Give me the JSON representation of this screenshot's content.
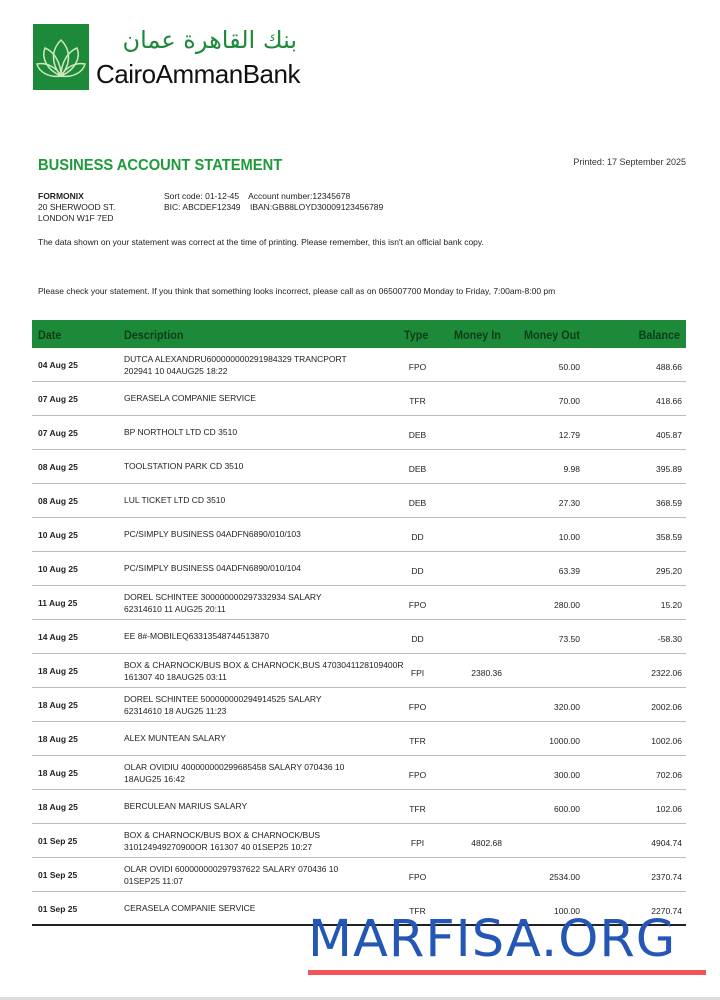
{
  "bank": {
    "name_ar": "بنك القاهرة عمان",
    "name_en": "CairoAmmanBank",
    "brand_color": "#1d8a3a"
  },
  "statement": {
    "title": "BUSINESS ACCOUNT STATEMENT",
    "printed": "Printed: 17 September 2025"
  },
  "customer": {
    "name": "FORMONIX",
    "address1": "20 SHERWOOD ST.",
    "address2": "LONDON W1F 7ED"
  },
  "account": {
    "line1": "Sort code: 01-12-45    Account number:12345678",
    "line2": "BIC: ABCDEF12349    IBAN:GB88LOYD30009123456789"
  },
  "notes": {
    "accuracy": "The data shown on your statement was correct at the time of printing. Please remember, this isn't an official bank copy.",
    "contact": "Please check your statement. If you think that something looks incorrect, please call as on 065007700 Monday to Friday, 7:00am-8:00 pm"
  },
  "table": {
    "headers": {
      "date": "Date",
      "description": "Description",
      "type": "Type",
      "money_in": "Money In",
      "money_out": "Money Out",
      "balance": "Balance"
    },
    "rows": [
      {
        "date": "04 Aug 25",
        "desc": "DUTCA ALEXANDRU600000000291984329 TRANCPORT",
        "desc2": "202941 10 04AUG25 18:22",
        "type": "FPO",
        "in": "",
        "out": "50.00",
        "bal": "488.66"
      },
      {
        "date": "07 Aug 25",
        "desc": "GERASELA COMPANIE SERVICE",
        "desc2": "",
        "type": "TFR",
        "in": "",
        "out": "70.00",
        "bal": "418.66"
      },
      {
        "date": "07 Aug 25",
        "desc": "BP NORTHOLT LTD CD 3510",
        "desc2": "",
        "type": "DEB",
        "in": "",
        "out": "12.79",
        "bal": "405.87"
      },
      {
        "date": "08 Aug 25",
        "desc": "TOOLSTATION PARK CD 3510",
        "desc2": "",
        "type": "DEB",
        "in": "",
        "out": "9.98",
        "bal": "395.89"
      },
      {
        "date": "08 Aug 25",
        "desc": "LUL TICKET LTD CD 3510",
        "desc2": "",
        "type": "DEB",
        "in": "",
        "out": "27.30",
        "bal": "368.59"
      },
      {
        "date": "10 Aug 25",
        "desc": "PC/SIMPLY BUSINESS 04ADFN6890/010/103",
        "desc2": "",
        "type": "DD",
        "in": "",
        "out": "10.00",
        "bal": "358.59"
      },
      {
        "date": "10 Aug 25",
        "desc": "PC/SIMPLY BUSINESS 04ADFN6890/010/104",
        "desc2": "",
        "type": "DD",
        "in": "",
        "out": "63.39",
        "bal": "295.20"
      },
      {
        "date": "11 Aug 25",
        "desc": "DOREL SCHINTEE 300000000297332934 SALARY",
        "desc2": "62314610 11 AUG25 20:11",
        "type": "FPO",
        "in": "",
        "out": "280.00",
        "bal": "15.20"
      },
      {
        "date": "14 Aug 25",
        "desc": "EE 8#-MOBILEQ63313548744513870",
        "desc2": "",
        "type": "DD",
        "in": "",
        "out": "73.50",
        "bal": "-58.30"
      },
      {
        "date": "18 Aug 25",
        "desc": "BOX & CHARNOCK/BUS BOX & CHARNOCK,BUS 4703041128109400R",
        "desc2": "161307 40 18AUG25 03:11",
        "type": "FPI",
        "in": "2380.36",
        "out": "",
        "bal": "2322.06"
      },
      {
        "date": "18 Aug 25",
        "desc": "DOREL SCHINTEE 500000000294914525 SALARY",
        "desc2": "62314610 18 AUG25 11:23",
        "type": "FPO",
        "in": "",
        "out": "320.00",
        "bal": "2002.06"
      },
      {
        "date": "18 Aug 25",
        "desc": "ALEX MUNTEAN SALARY",
        "desc2": "",
        "type": "TFR",
        "in": "",
        "out": "1000.00",
        "bal": "1002.06"
      },
      {
        "date": "18 Aug 25",
        "desc": "OLAR OVIDIU 400000000299685458 SALARY 070436 10",
        "desc2": "18AUG25 16:42",
        "type": "FPO",
        "in": "",
        "out": "300.00",
        "bal": "702.06"
      },
      {
        "date": "18 Aug 25",
        "desc": "BERCULEAN MARIUS SALARY",
        "desc2": "",
        "type": "TFR",
        "in": "",
        "out": "600.00",
        "bal": "102.06"
      },
      {
        "date": "01 Sep 25",
        "desc": "BOX & CHARNOCK/BUS BOX & CHARNOCK/BUS",
        "desc2": "310124949270900OR 161307 40 01SEP25 10:27",
        "type": "FPI",
        "in": "4802.68",
        "out": "",
        "bal": "4904.74"
      },
      {
        "date": "01 Sep 25",
        "desc": "OLAR OVIDI 600000000297937622 SALARY 070436 10",
        "desc2": "01SEP25 11:07",
        "type": "FPO",
        "in": "",
        "out": "2534.00",
        "bal": "2370.74"
      },
      {
        "date": "01 Sep 25",
        "desc": "CERASELA COMPANIE SERVICE",
        "desc2": "",
        "type": "TFR",
        "in": "",
        "out": "100.00",
        "bal": "2270.74"
      }
    ]
  },
  "watermark": {
    "text": "MARFISA.ORG",
    "color": "#2456b5",
    "underline_color": "#f0535a"
  }
}
